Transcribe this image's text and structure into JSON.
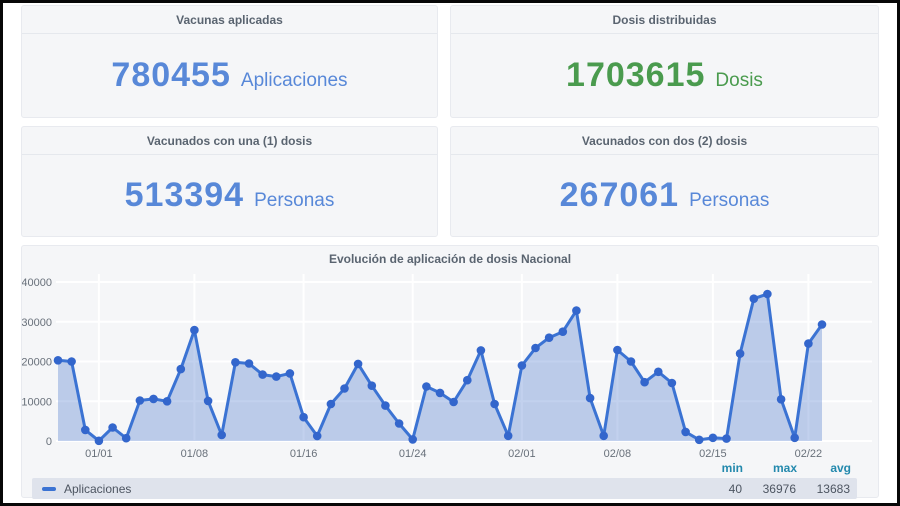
{
  "cards": [
    {
      "title": "Vacunas aplicadas",
      "value": "780455",
      "unit": "Aplicaciones",
      "color": "#5888d8"
    },
    {
      "title": "Dosis distribuidas",
      "value": "1703615",
      "unit": "Dosis",
      "color": "#4a9b4e"
    },
    {
      "title": "Vacunados con una (1) dosis",
      "value": "513394",
      "unit": "Personas",
      "color": "#5888d8"
    },
    {
      "title": "Vacunados con dos (2) dosis",
      "value": "267061",
      "unit": "Personas",
      "color": "#5888d8"
    }
  ],
  "chart": {
    "title": "Evolución de aplicación de dosis Nacional",
    "legend_label": "Aplicaciones",
    "stats_headers": [
      "min",
      "max",
      "avg"
    ],
    "stats_values": [
      "40",
      "36976",
      "13683"
    ]
  },
  "chart_data": {
    "type": "area",
    "title": "Evolución de aplicación de dosis Nacional",
    "series": [
      {
        "name": "Aplicaciones",
        "values": [
          20300,
          20000,
          2800,
          40,
          3400,
          700,
          10200,
          10600,
          10000,
          18100,
          27900,
          10100,
          1500,
          19800,
          19500,
          16700,
          16200,
          17000,
          6000,
          1250,
          9300,
          13200,
          19400,
          13900,
          8900,
          4400,
          400,
          13700,
          12100,
          9800,
          15300,
          22800,
          9300,
          1300,
          19000,
          23400,
          26000,
          27500,
          32800,
          10800,
          1300,
          22900,
          20000,
          14800,
          17400,
          14600,
          2300,
          300,
          800,
          600,
          22000,
          35800,
          36976,
          10500,
          800,
          24500,
          29300
        ]
      }
    ],
    "x_ticks": [
      {
        "index": 3,
        "label": "01/01"
      },
      {
        "index": 10,
        "label": "01/08"
      },
      {
        "index": 18,
        "label": "01/16"
      },
      {
        "index": 26,
        "label": "01/24"
      },
      {
        "index": 34,
        "label": "02/01"
      },
      {
        "index": 41,
        "label": "02/08"
      },
      {
        "index": 48,
        "label": "02/15"
      },
      {
        "index": 55,
        "label": "02/22"
      }
    ],
    "y_ticks": [
      0,
      10000,
      20000,
      30000,
      40000
    ],
    "ylim": [
      0,
      40000
    ],
    "grid": true,
    "legend_position": "bottom",
    "stats": {
      "min": 40,
      "max": 36976,
      "avg": 13683
    },
    "line_color": "#3b73d3",
    "point_color": "#3366cc",
    "fill_color": "rgba(80,124,205,0.35)",
    "grid_color": "#ffffff",
    "axis_label_color": "#68707a"
  }
}
